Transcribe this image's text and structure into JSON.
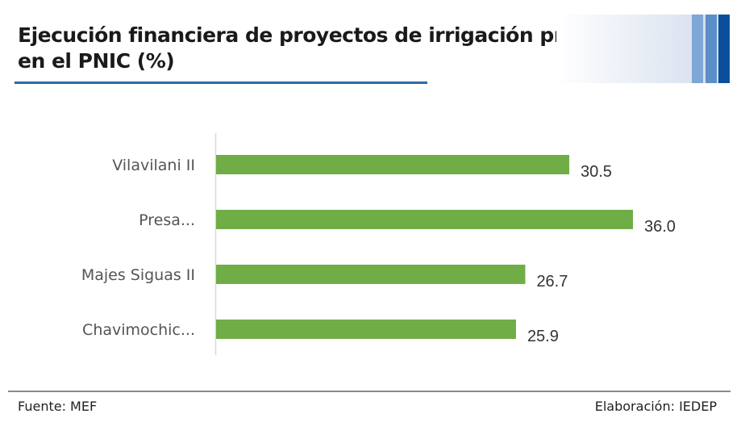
{
  "header": {
    "title_line1": "Ejecución financiera de proyectos de irrigación priorizados",
    "title_line2": "en el PNIC (%)"
  },
  "footer": {
    "source": "Fuente: MEF",
    "credit": "Elaboración: IEDEP"
  },
  "colors": {
    "bar": "#70ad47",
    "title_rule": "#2e6aa8",
    "axis": "#d9d9d9"
  },
  "chart_data": {
    "type": "bar",
    "orientation": "horizontal",
    "title": "Ejecución financiera de proyectos de irrigación priorizados en el PNIC (%)",
    "categories": [
      "Vilavilani II",
      "Presa...",
      "Majes Siguas II",
      "Chavimochic..."
    ],
    "values": [
      30.5,
      36.0,
      26.7,
      25.9
    ],
    "value_labels": [
      "30.5",
      "36.0",
      "26.7",
      "25.9"
    ],
    "xlabel": "",
    "ylabel": "",
    "xlim": [
      0,
      36
    ],
    "grid": false,
    "legend": "none"
  }
}
